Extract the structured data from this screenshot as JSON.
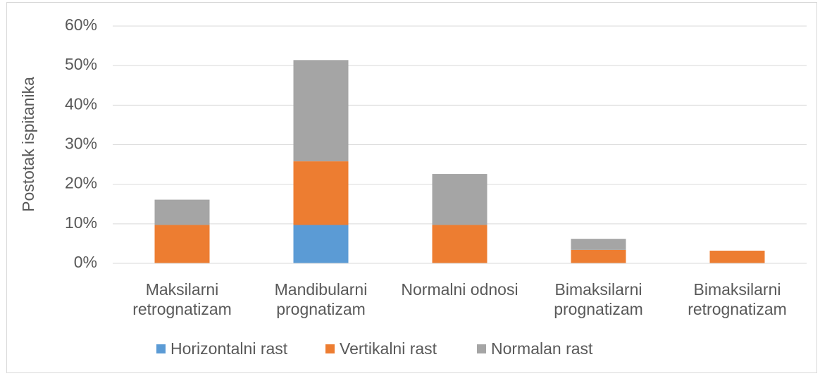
{
  "chart_data": {
    "type": "stacked_bar",
    "y_label": "Postotak ispitanika",
    "categories": [
      "Maksilarni retrognatizam",
      "Mandibularni prognatizam",
      "Normalni odnosi",
      "Bimaksilarni prognatizam",
      "Bimaksilarni retrognatizam"
    ],
    "series": [
      {
        "name": "Horizontalni rast",
        "color": "#5b9bd5",
        "values": [
          0,
          9.7,
          0,
          0,
          0
        ]
      },
      {
        "name": "Vertikalni rast",
        "color": "#ed7d31",
        "values": [
          9.7,
          16.1,
          9.7,
          3.4,
          3.2
        ]
      },
      {
        "name": "Normalan rast",
        "color": "#a5a5a5",
        "values": [
          6.4,
          25.6,
          12.9,
          2.8,
          0
        ]
      }
    ],
    "ylim": [
      0,
      60
    ],
    "yticks": [
      {
        "value": 0,
        "label": "0%"
      },
      {
        "value": 10,
        "label": "10%"
      },
      {
        "value": 20,
        "label": "20%"
      },
      {
        "value": 30,
        "label": "30%"
      },
      {
        "value": 40,
        "label": "40%"
      },
      {
        "value": 50,
        "label": "50%"
      },
      {
        "value": 60,
        "label": "60%"
      }
    ],
    "grid": true,
    "legend": "bottom"
  }
}
